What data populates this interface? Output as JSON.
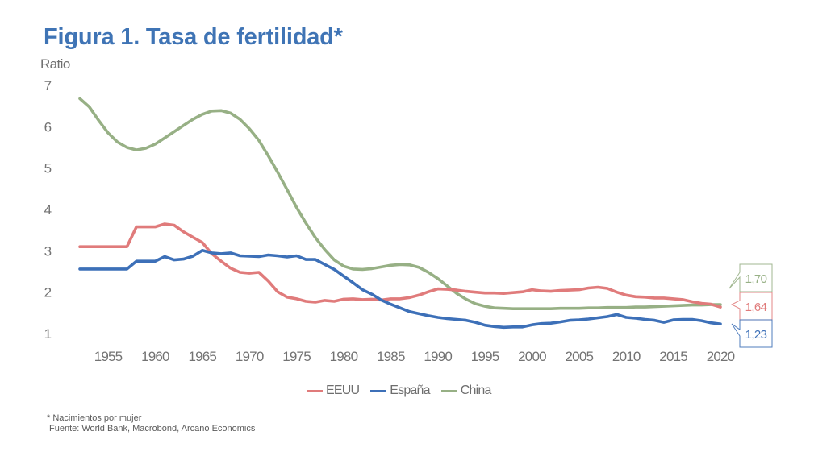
{
  "title": "Figura 1. Tasa de fertilidad*",
  "footnote": {
    "note": "* Nacimientos por mujer",
    "source": "Fuente: World Bank, Macrobond, Arcano Economics"
  },
  "chart_data": {
    "type": "line",
    "title": "Figura 1. Tasa de fertilidad*",
    "xlabel": "",
    "ylabel": "Ratio",
    "ylim": [
      1,
      7
    ],
    "xlim": [
      1952,
      2020
    ],
    "yticks": [
      "1",
      "2",
      "3",
      "4",
      "5",
      "6",
      "7"
    ],
    "xticks": [
      "1955",
      "1960",
      "1965",
      "1970",
      "1975",
      "1980",
      "1985",
      "1990",
      "1995",
      "2000",
      "2005",
      "2010",
      "2015",
      "2020"
    ],
    "grid": false,
    "legend_position": "bottom",
    "x": [
      1952,
      1953,
      1954,
      1955,
      1956,
      1957,
      1958,
      1959,
      1960,
      1961,
      1962,
      1963,
      1964,
      1965,
      1966,
      1967,
      1968,
      1969,
      1970,
      1971,
      1972,
      1973,
      1974,
      1975,
      1976,
      1977,
      1978,
      1979,
      1980,
      1981,
      1982,
      1983,
      1984,
      1985,
      1986,
      1987,
      1988,
      1989,
      1990,
      1991,
      1992,
      1993,
      1994,
      1995,
      1996,
      1997,
      1998,
      1999,
      2000,
      2001,
      2002,
      2003,
      2004,
      2005,
      2006,
      2007,
      2008,
      2009,
      2010,
      2011,
      2012,
      2013,
      2014,
      2015,
      2016,
      2017,
      2018,
      2019,
      2020
    ],
    "series": [
      {
        "name": "EEUU",
        "color": "#e07b7b",
        "values": [
          3.1,
          3.1,
          3.1,
          3.1,
          3.1,
          3.1,
          3.58,
          3.58,
          3.58,
          3.65,
          3.62,
          3.46,
          3.33,
          3.2,
          2.93,
          2.75,
          2.58,
          2.48,
          2.46,
          2.48,
          2.27,
          2.01,
          1.88,
          1.84,
          1.78,
          1.76,
          1.8,
          1.78,
          1.83,
          1.84,
          1.82,
          1.83,
          1.81,
          1.84,
          1.84,
          1.87,
          1.93,
          2.01,
          2.08,
          2.07,
          2.05,
          2.02,
          2.0,
          1.98,
          1.98,
          1.97,
          1.99,
          2.01,
          2.06,
          2.03,
          2.02,
          2.04,
          2.05,
          2.06,
          2.1,
          2.12,
          2.09,
          2.0,
          1.93,
          1.89,
          1.88,
          1.86,
          1.86,
          1.84,
          1.82,
          1.77,
          1.73,
          1.71,
          1.64
        ]
      },
      {
        "name": "España",
        "color": "#3d70b8",
        "values": [
          2.56,
          2.56,
          2.56,
          2.56,
          2.56,
          2.56,
          2.75,
          2.75,
          2.75,
          2.86,
          2.78,
          2.8,
          2.87,
          3.01,
          2.95,
          2.93,
          2.95,
          2.88,
          2.87,
          2.86,
          2.9,
          2.88,
          2.85,
          2.88,
          2.79,
          2.79,
          2.67,
          2.55,
          2.39,
          2.23,
          2.06,
          1.95,
          1.81,
          1.71,
          1.62,
          1.53,
          1.48,
          1.43,
          1.39,
          1.36,
          1.34,
          1.32,
          1.27,
          1.2,
          1.17,
          1.15,
          1.16,
          1.16,
          1.21,
          1.24,
          1.25,
          1.28,
          1.32,
          1.33,
          1.35,
          1.38,
          1.41,
          1.46,
          1.39,
          1.37,
          1.34,
          1.32,
          1.27,
          1.33,
          1.34,
          1.34,
          1.31,
          1.26,
          1.23
        ]
      },
      {
        "name": "China",
        "color": "#97b085",
        "values": [
          6.68,
          6.48,
          6.15,
          5.85,
          5.63,
          5.5,
          5.44,
          5.48,
          5.58,
          5.73,
          5.88,
          6.03,
          6.18,
          6.3,
          6.38,
          6.39,
          6.33,
          6.18,
          5.95,
          5.67,
          5.3,
          4.9,
          4.48,
          4.05,
          3.67,
          3.32,
          3.03,
          2.78,
          2.63,
          2.56,
          2.55,
          2.57,
          2.61,
          2.65,
          2.67,
          2.66,
          2.6,
          2.48,
          2.33,
          2.15,
          1.97,
          1.83,
          1.72,
          1.66,
          1.62,
          1.61,
          1.6,
          1.6,
          1.6,
          1.6,
          1.6,
          1.61,
          1.61,
          1.61,
          1.62,
          1.62,
          1.63,
          1.63,
          1.63,
          1.64,
          1.64,
          1.65,
          1.66,
          1.67,
          1.68,
          1.69,
          1.69,
          1.7,
          1.7
        ]
      }
    ],
    "end_labels": [
      {
        "series": "China",
        "text": "1,70",
        "color": "#97b085"
      },
      {
        "series": "EEUU",
        "text": "1,64",
        "color": "#e07b7b"
      },
      {
        "series": "España",
        "text": "1,23",
        "color": "#3d70b8"
      }
    ]
  }
}
